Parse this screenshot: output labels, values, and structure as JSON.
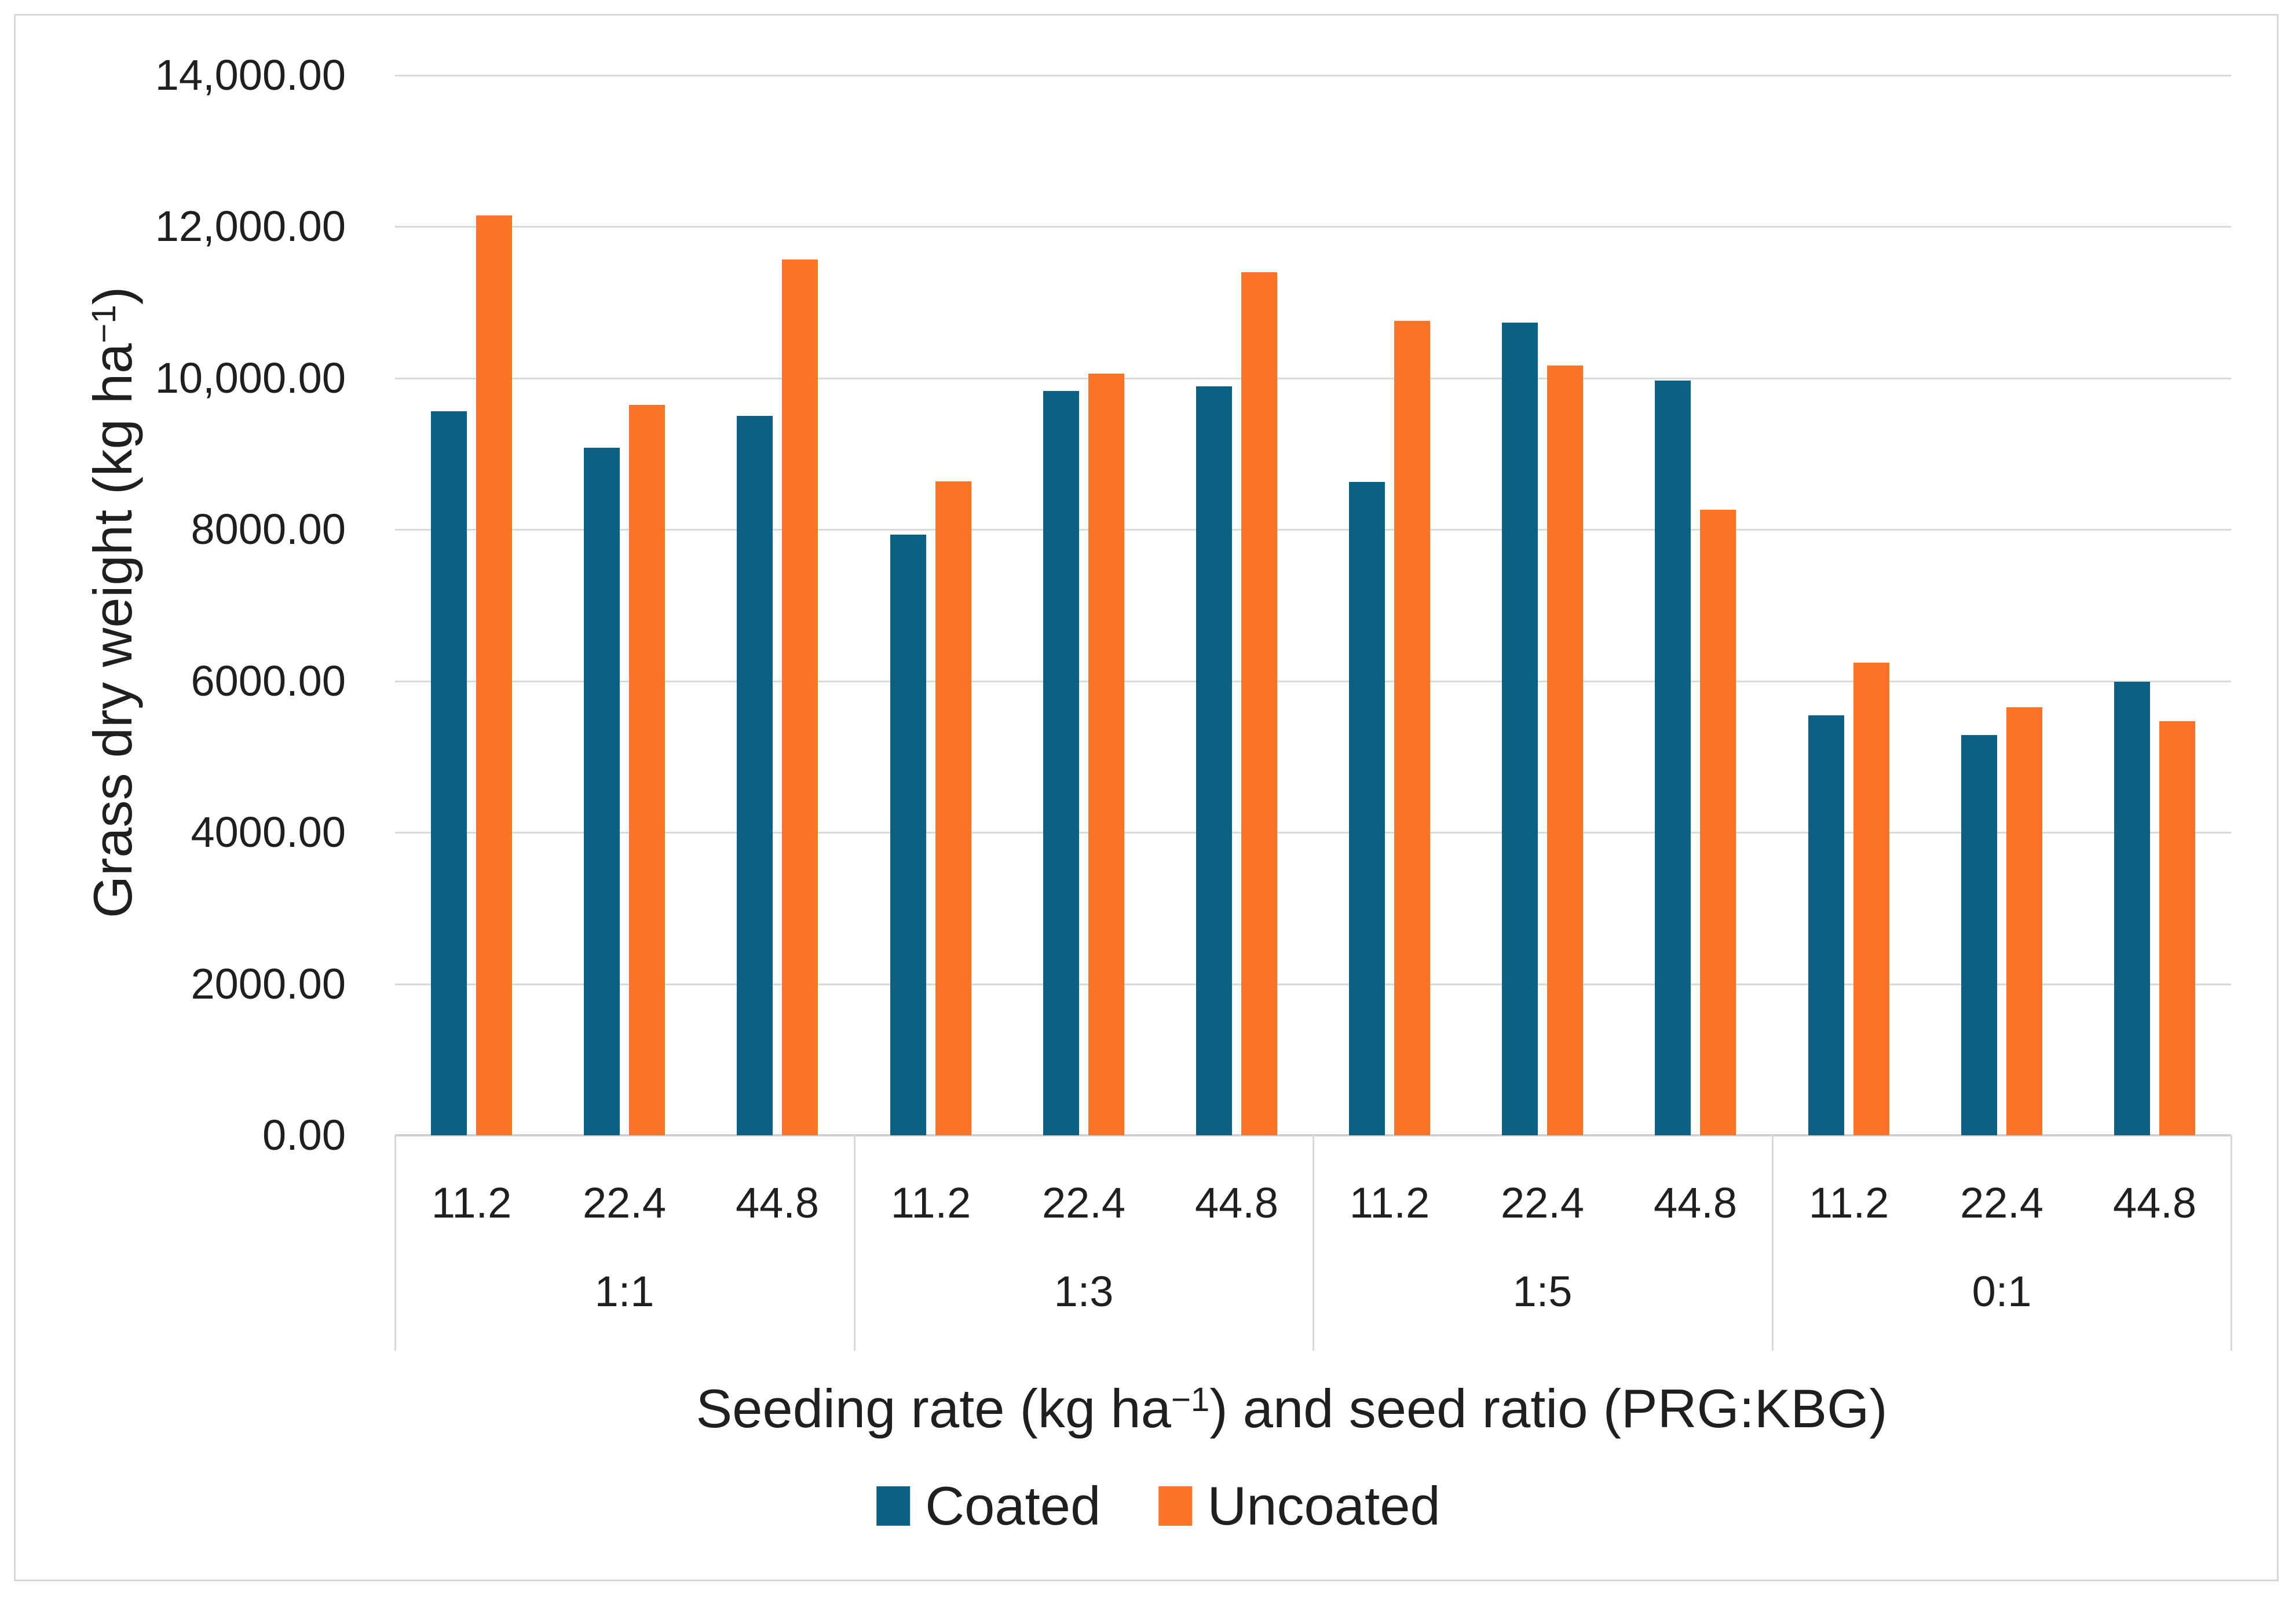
{
  "chart_data": {
    "type": "bar",
    "title": "",
    "ylabel": "Grass dry weight (kg ha⁻¹)",
    "ylabel_parts": {
      "pre": "Grass dry weight (kg ha",
      "sup": "−1",
      "post": ")"
    },
    "xlabel": "Seeding rate (kg ha⁻¹) and seed ratio (PRG:KBG)",
    "xlabel_parts": {
      "pre": "Seeding rate (kg ha",
      "sup": "−1",
      "post": ") and seed ratio (PRG:KBG)"
    },
    "ylim": [
      0,
      14000
    ],
    "ytick_interval": 2000,
    "ytick_labels_top_to_bottom": [
      "14,000.00",
      "12,000.00",
      "10,000.00",
      "8000.00",
      "6000.00",
      "4000.00",
      "2000.00",
      "0.00"
    ],
    "grid": true,
    "legend_position": "bottom",
    "groups": [
      {
        "ratio": "1:1",
        "rates": [
          "11.2",
          "22.4",
          "44.8"
        ]
      },
      {
        "ratio": "1:3",
        "rates": [
          "11.2",
          "22.4",
          "44.8"
        ]
      },
      {
        "ratio": "1:5",
        "rates": [
          "11.2",
          "22.4",
          "44.8"
        ]
      },
      {
        "ratio": "0:1",
        "rates": [
          "11.2",
          "22.4",
          "44.8"
        ]
      }
    ],
    "series": [
      {
        "name": "Coated",
        "color": "#0B6183",
        "values": [
          9560,
          9080,
          9500,
          7930,
          9830,
          9890,
          8630,
          10730,
          9970,
          5550,
          5290,
          5990
        ]
      },
      {
        "name": "Uncoated",
        "color": "#FB7428",
        "values": [
          12150,
          9650,
          11570,
          8640,
          10060,
          11400,
          10760,
          10170,
          8260,
          6240,
          5650,
          5470
        ]
      }
    ],
    "colors": {
      "gridline": "#d9d9d9",
      "axis_line": "#d2d2d2",
      "text": "#1f1f1f",
      "frame_border": "#d8d8d8"
    }
  }
}
